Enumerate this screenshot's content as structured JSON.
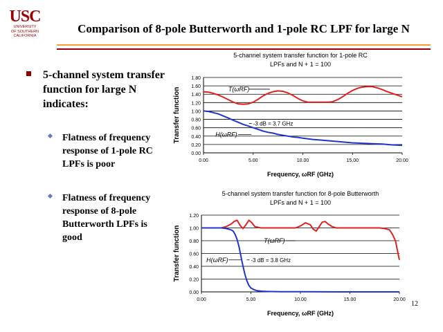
{
  "logo": {
    "main": "USC",
    "line1": "UNIVERSITY",
    "line2": "OF SOUTHERN",
    "line3": "CALIFORNIA"
  },
  "slide": {
    "title": "Comparison of 8-pole Butterworth and 1-pole RC LPF for large N",
    "page_number": "12",
    "rule_colors": [
      "#f0a030",
      "#9a0000"
    ]
  },
  "bullets": {
    "main": "5-channel system transfer function for large N indicates:",
    "sub1": "Flatness of frequency response of 1-pole RC LPFs is poor",
    "sub2": "Flatness of frequency response of 8-pole Butterworth LPFs is good"
  },
  "chart_data": [
    {
      "type": "line",
      "title": "5-channel system transfer function for 1-pole RC LPFs and N + 1 = 100",
      "title_line1": "5-channel system transfer function for 1-pole RC",
      "title_line2": "LPFs and N + 1 = 100",
      "xlabel": "Frequency, ωRF (GHz)",
      "ylabel": "Transfer function",
      "xlim": [
        0,
        20
      ],
      "ylim": [
        0,
        1.8
      ],
      "xticks": [
        "0.00",
        "5.00",
        "10.00",
        "15.00",
        "20.00"
      ],
      "yticks": [
        "0.00",
        "0.20",
        "0.40",
        "0.60",
        "0.80",
        "1.00",
        "1.20",
        "1.40",
        "1.60",
        "1.80"
      ],
      "annotation": "-3 dB = 3.7 GHz",
      "series": [
        {
          "name": "T(ωRF)",
          "color": "#dd2222",
          "x": [
            0,
            0.5,
            1,
            1.5,
            2,
            2.5,
            3,
            3.5,
            4,
            4.5,
            5,
            5.5,
            6,
            6.5,
            7,
            7.5,
            8,
            8.5,
            9,
            9.5,
            10,
            10.5,
            11,
            11.5,
            12,
            12.5,
            13,
            13.5,
            14,
            14.5,
            15,
            15.5,
            16,
            16.5,
            17,
            17.5,
            18,
            18.5,
            19,
            19.5,
            20
          ],
          "y": [
            1.46,
            1.45,
            1.42,
            1.38,
            1.33,
            1.27,
            1.21,
            1.17,
            1.16,
            1.17,
            1.21,
            1.28,
            1.36,
            1.42,
            1.46,
            1.48,
            1.47,
            1.43,
            1.37,
            1.3,
            1.24,
            1.21,
            1.21,
            1.21,
            1.21,
            1.21,
            1.22,
            1.27,
            1.34,
            1.42,
            1.49,
            1.54,
            1.57,
            1.58,
            1.58,
            1.55,
            1.51,
            1.46,
            1.42,
            1.38,
            1.34
          ]
        },
        {
          "name": "H(ωRF)",
          "color": "#2233cc",
          "x": [
            0,
            0.5,
            1,
            1.5,
            2,
            2.5,
            3,
            3.5,
            4,
            4.5,
            5,
            5.5,
            6,
            6.5,
            7,
            7.5,
            8,
            8.5,
            9,
            9.5,
            10,
            11,
            12,
            13,
            14,
            15,
            16,
            17,
            18,
            19,
            20
          ],
          "y": [
            1.0,
            0.99,
            0.96,
            0.93,
            0.88,
            0.83,
            0.78,
            0.73,
            0.68,
            0.64,
            0.6,
            0.56,
            0.52,
            0.49,
            0.47,
            0.44,
            0.42,
            0.4,
            0.38,
            0.37,
            0.35,
            0.32,
            0.3,
            0.28,
            0.26,
            0.24,
            0.23,
            0.22,
            0.21,
            0.19,
            0.18
          ]
        }
      ]
    },
    {
      "type": "line",
      "title": "5-channel system transfer function for 8-pole Butterworth LPFs and N + 1 = 100",
      "title_line1": "5-channel system transfer function for 8-pole Butterworth",
      "title_line2": "LPFs and N + 1 = 100",
      "xlabel": "Frequency, ωRF (GHz)",
      "ylabel": "Transfer function",
      "xlim": [
        0,
        20
      ],
      "ylim": [
        0,
        1.2
      ],
      "xticks": [
        "0.00",
        "5.00",
        "10.00",
        "15.00",
        "20.00"
      ],
      "yticks": [
        "0.00",
        "0.20",
        "0.40",
        "0.60",
        "0.80",
        "1.00",
        "1.20"
      ],
      "annotation": "-3 dB = 3.8 GHz",
      "series": [
        {
          "name": "T(ωRF)",
          "color": "#dd2222",
          "x": [
            0,
            1,
            2,
            2.5,
            3,
            3.3,
            3.6,
            3.9,
            4.2,
            4.5,
            4.8,
            5.1,
            5.4,
            6,
            8,
            9.5,
            10,
            10.5,
            11,
            11.3,
            11.6,
            11.9,
            12.2,
            12.5,
            12.8,
            13.2,
            13.6,
            14,
            16,
            18,
            18.5,
            19,
            19.3,
            19.6,
            19.8,
            20
          ],
          "y": [
            1.0,
            1.0,
            1.0,
            1.02,
            1.06,
            1.1,
            1.12,
            1.04,
            0.99,
            1.05,
            1.12,
            1.08,
            1.02,
            1.0,
            1.0,
            1.0,
            1.03,
            1.08,
            1.05,
            0.98,
            0.95,
            1.02,
            1.09,
            1.1,
            1.06,
            1.02,
            1.0,
            1.0,
            1.0,
            1.0,
            0.99,
            0.97,
            0.9,
            0.8,
            0.65,
            0.5
          ]
        },
        {
          "name": "H(ωRF)",
          "color": "#2233cc",
          "x": [
            0,
            1,
            2,
            2.5,
            3,
            3.2,
            3.4,
            3.6,
            3.8,
            4.0,
            4.2,
            4.4,
            4.6,
            4.8,
            5.0,
            5.3,
            5.6,
            6,
            6.5,
            7,
            8,
            10,
            12,
            14,
            16,
            18,
            20
          ],
          "y": [
            1.0,
            1.0,
            1.0,
            0.99,
            0.97,
            0.95,
            0.9,
            0.82,
            0.707,
            0.55,
            0.4,
            0.27,
            0.17,
            0.1,
            0.06,
            0.035,
            0.02,
            0.012,
            0.008,
            0.005,
            0.003,
            0.002,
            0.001,
            0.0,
            0.0,
            0.0,
            0.0
          ]
        }
      ]
    }
  ]
}
